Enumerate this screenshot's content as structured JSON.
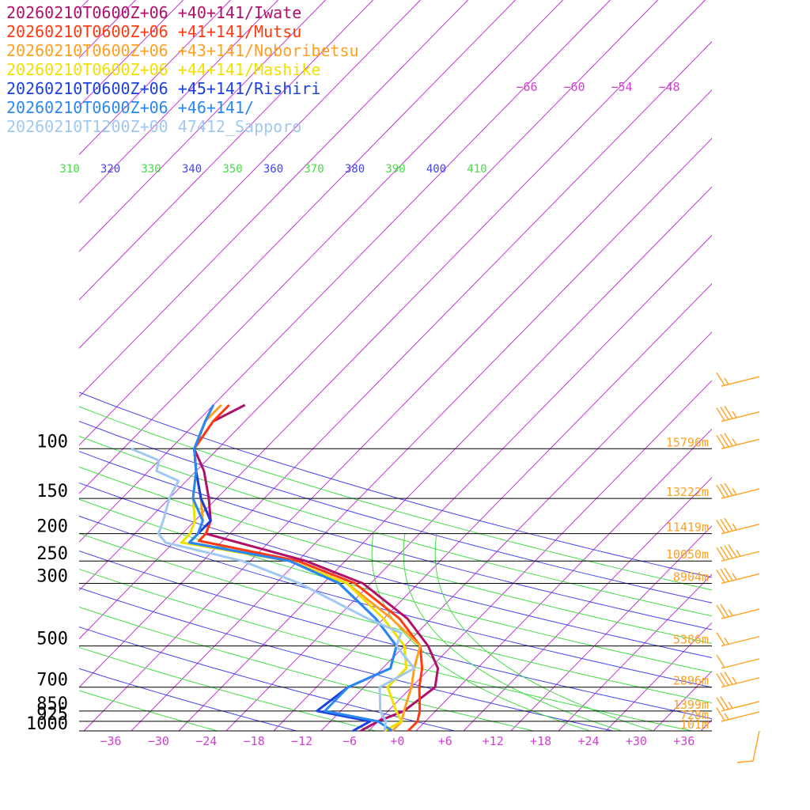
{
  "legend": [
    {
      "label": "20260210T0600Z+06 +40+141/Iwate",
      "color": "#b0106a"
    },
    {
      "label": "20260210T0600Z+06 +41+141/Mutsu",
      "color": "#ff3a10"
    },
    {
      "label": "20260210T0600Z+06 +43+141/Noboribetsu",
      "color": "#ffa020"
    },
    {
      "label": "20260210T0600Z+06 +44+141/Mashike",
      "color": "#f0e000"
    },
    {
      "label": "20260210T0600Z+06 +45+141/Rishiri",
      "color": "#1a40e0"
    },
    {
      "label": "20260210T0600Z+06 +46+141/",
      "color": "#2a88f0"
    },
    {
      "label": "20260210T1200Z+00 47412_Sapporo",
      "color": "#a0c8f0"
    }
  ],
  "chart_data": {
    "type": "line",
    "kind": "skew-T log-p sounding",
    "y_axis": {
      "unit": "hPa",
      "scale": "log",
      "range": [
        1000,
        100
      ],
      "ticks": [
        100,
        150,
        200,
        250,
        300,
        500,
        700,
        850,
        925,
        1000
      ]
    },
    "x_axis": {
      "unit": "°C",
      "ticks": [
        "−36",
        "−30",
        "−24",
        "−18",
        "−12",
        "−6",
        "+0",
        "+6",
        "+12",
        "+18",
        "+24",
        "+30",
        "+36"
      ]
    },
    "isotherm_labels_top": [
      "−66",
      "−60",
      "−54",
      "−48"
    ],
    "theta_labels": [
      "310",
      "320",
      "330",
      "340",
      "350",
      "360",
      "370",
      "380",
      "390",
      "400",
      "410"
    ],
    "heights": [
      {
        "p": 100,
        "label": "15796m"
      },
      {
        "p": 150,
        "label": "13222m"
      },
      {
        "p": 200,
        "label": "11419m"
      },
      {
        "p": 250,
        "label": "10050m"
      },
      {
        "p": 300,
        "label": "8904m"
      },
      {
        "p": 500,
        "label": "5386m"
      },
      {
        "p": 700,
        "label": "2896m"
      },
      {
        "p": 850,
        "label": "1399m"
      },
      {
        "p": 925,
        "label": "728m"
      },
      {
        "p": 1000,
        "label": "101m"
      }
    ],
    "series": [
      {
        "name": "20260210T0600Z+06 +40+141/Iwate",
        "color": "#b0106a",
        "points": [
          [
            1000,
            -5
          ],
          [
            925,
            -4
          ],
          [
            850,
            -2
          ],
          [
            700,
            -1
          ],
          [
            600,
            -3
          ],
          [
            500,
            -7
          ],
          [
            400,
            -13
          ],
          [
            300,
            -23
          ],
          [
            250,
            -33
          ],
          [
            200,
            -49
          ],
          [
            180,
            -50
          ],
          [
            150,
            -53
          ],
          [
            120,
            -57
          ],
          [
            100,
            -61
          ],
          [
            80,
            -62
          ],
          [
            70,
            -60
          ]
        ]
      },
      {
        "name": "20260210T0600Z+06 +41+141/Mutsu",
        "color": "#ff3a10",
        "points": [
          [
            1000,
            1
          ],
          [
            925,
            1
          ],
          [
            850,
            0
          ],
          [
            700,
            -3
          ],
          [
            600,
            -5
          ],
          [
            500,
            -8
          ],
          [
            400,
            -14
          ],
          [
            300,
            -24
          ],
          [
            250,
            -34
          ],
          [
            212,
            -49
          ],
          [
            200,
            -49
          ],
          [
            180,
            -50
          ],
          [
            150,
            -54
          ],
          [
            120,
            -58
          ],
          [
            100,
            -61
          ],
          [
            80,
            -62
          ],
          [
            70,
            -62
          ]
        ]
      },
      {
        "name": "20260210T0600Z+06 +43+141/Noboribetsu",
        "color": "#ffa020",
        "points": [
          [
            1000,
            -1
          ],
          [
            925,
            -1
          ],
          [
            850,
            -2
          ],
          [
            700,
            -4
          ],
          [
            600,
            -6
          ],
          [
            500,
            -8
          ],
          [
            400,
            -15
          ],
          [
            300,
            -25
          ],
          [
            250,
            -35
          ],
          [
            215,
            -50
          ],
          [
            200,
            -50
          ],
          [
            180,
            -51
          ],
          [
            150,
            -54
          ],
          [
            120,
            -58
          ],
          [
            100,
            -61
          ],
          [
            80,
            -63
          ],
          [
            70,
            -63
          ]
        ]
      },
      {
        "name": "20260210T0600Z+06 +44+141/Mashike",
        "color": "#f0e000",
        "points": [
          [
            1000,
            -2
          ],
          [
            925,
            -1
          ],
          [
            850,
            -3
          ],
          [
            700,
            -7
          ],
          [
            600,
            -7
          ],
          [
            500,
            -10
          ],
          [
            400,
            -16
          ],
          [
            300,
            -25
          ],
          [
            250,
            -35
          ],
          [
            215,
            -51
          ],
          [
            200,
            -51
          ],
          [
            180,
            -52
          ],
          [
            150,
            -55
          ],
          [
            120,
            -58
          ],
          [
            100,
            -61
          ],
          [
            80,
            -63
          ],
          [
            70,
            -64
          ]
        ]
      },
      {
        "name": "20260210T0600Z+06 +45+141/Rishiri",
        "color": "#1a40e0",
        "points": [
          [
            1000,
            -6
          ],
          [
            925,
            -5
          ],
          [
            850,
            -13
          ],
          [
            700,
            -12
          ],
          [
            600,
            -9
          ],
          [
            500,
            -11
          ],
          [
            400,
            -17
          ],
          [
            300,
            -26
          ],
          [
            250,
            -35
          ],
          [
            215,
            -50
          ],
          [
            200,
            -50
          ],
          [
            180,
            -50
          ],
          [
            150,
            -54
          ],
          [
            120,
            -58
          ],
          [
            100,
            -61
          ],
          [
            80,
            -63
          ],
          [
            70,
            -64
          ]
        ]
      },
      {
        "name": "20260210T0600Z+06 +46+141/",
        "color": "#2a88f0",
        "points": [
          [
            1000,
            -1
          ],
          [
            925,
            -4
          ],
          [
            850,
            -12
          ],
          [
            700,
            -12
          ],
          [
            600,
            -9
          ],
          [
            500,
            -11
          ],
          [
            400,
            -17
          ],
          [
            300,
            -26
          ],
          [
            250,
            -35
          ],
          [
            215,
            -50
          ],
          [
            200,
            -50
          ],
          [
            180,
            -51
          ],
          [
            150,
            -55
          ],
          [
            120,
            -58
          ],
          [
            100,
            -61
          ],
          [
            80,
            -63
          ],
          [
            70,
            -64
          ]
        ]
      },
      {
        "name": "20260210T1200Z+00 47412_Sapporo",
        "color": "#a0c8f0",
        "points": [
          [
            1000,
            -2
          ],
          [
            925,
            -3
          ],
          [
            850,
            -5
          ],
          [
            700,
            -8
          ],
          [
            600,
            -6
          ],
          [
            500,
            -11
          ],
          [
            450,
            -12
          ],
          [
            400,
            -18
          ],
          [
            300,
            -31
          ],
          [
            250,
            -41
          ],
          [
            215,
            -53
          ],
          [
            200,
            -55
          ],
          [
            180,
            -56
          ],
          [
            150,
            -58
          ],
          [
            130,
            -59
          ],
          [
            120,
            -63
          ],
          [
            110,
            -64
          ],
          [
            100,
            -69
          ]
        ]
      }
    ],
    "wind_barbs": {
      "color": "#ffa020",
      "levels": [
        {
          "p": 60,
          "speed_kt": 15
        },
        {
          "p": 80,
          "speed_kt": 35
        },
        {
          "p": 100,
          "speed_kt": 35
        },
        {
          "p": 150,
          "speed_kt": 35
        },
        {
          "p": 200,
          "speed_kt": 35
        },
        {
          "p": 250,
          "speed_kt": 45
        },
        {
          "p": 300,
          "speed_kt": 35
        },
        {
          "p": 400,
          "speed_kt": 25
        },
        {
          "p": 500,
          "speed_kt": 15
        },
        {
          "p": 600,
          "speed_kt": 10
        },
        {
          "p": 700,
          "speed_kt": 35
        },
        {
          "p": 850,
          "speed_kt": 25
        },
        {
          "p": 925,
          "speed_kt": 15
        },
        {
          "p": 1000,
          "speed_kt": 0
        }
      ]
    }
  }
}
